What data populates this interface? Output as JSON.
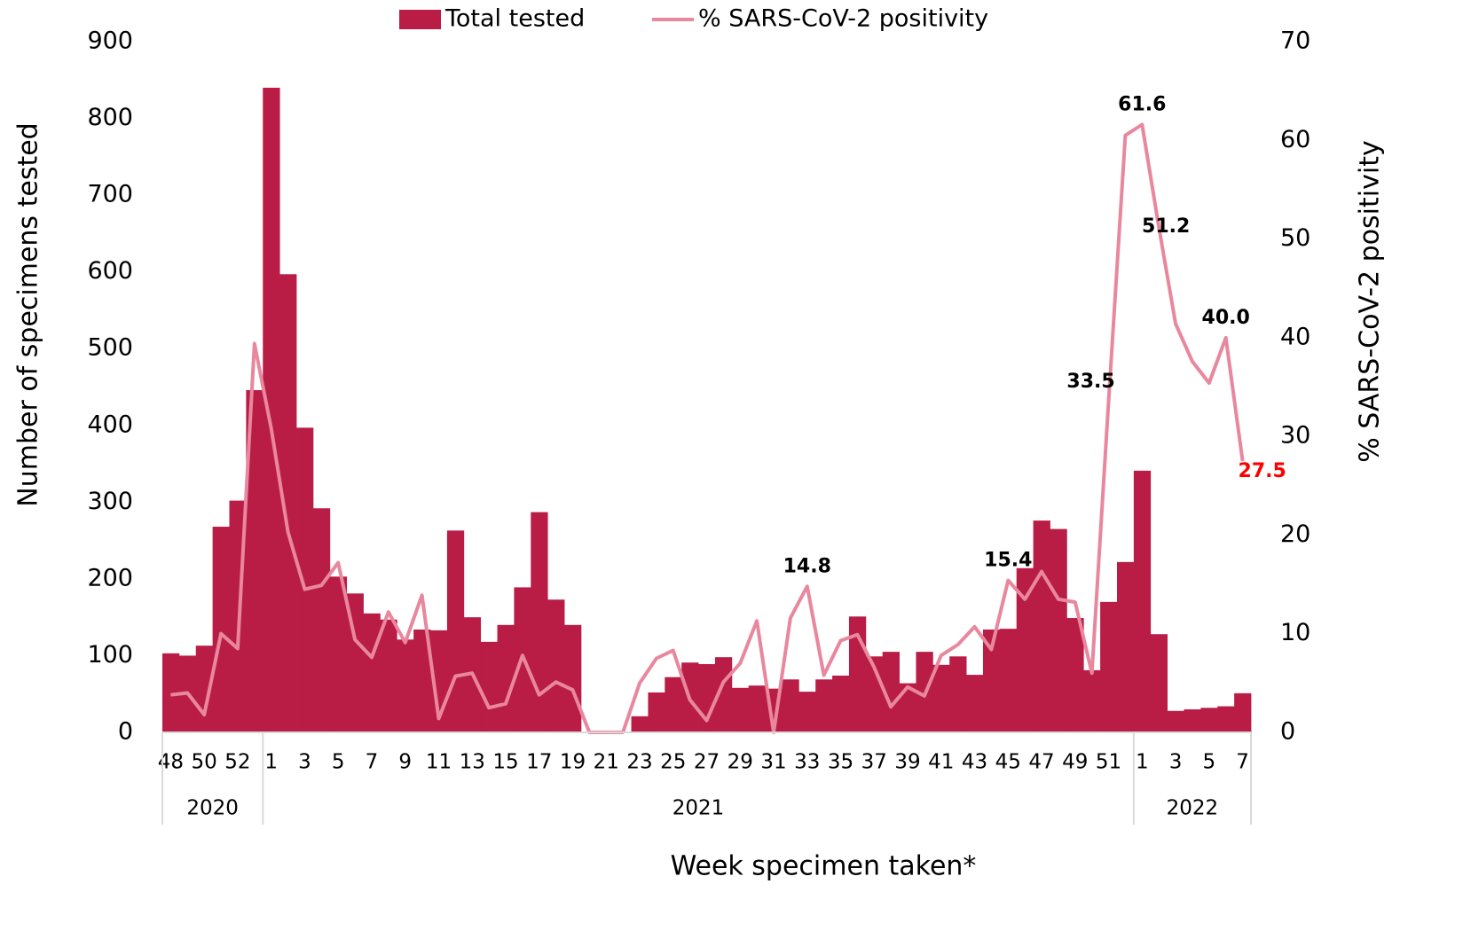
{
  "chart_data": {
    "type": "bar-line",
    "x_label": "Week specimen taken*",
    "y_label": "Number of specimens tested",
    "y2_label": "% SARS-CoV-2 positivity",
    "categories": [
      "48",
      null,
      "50",
      null,
      "52",
      null,
      "1",
      null,
      "3",
      null,
      "5",
      null,
      "7",
      null,
      "9",
      null,
      "11",
      null,
      "13",
      null,
      "15",
      null,
      "17",
      null,
      "19",
      null,
      "21",
      null,
      "23",
      null,
      "25",
      null,
      "27",
      null,
      "29",
      null,
      "31",
      null,
      "33",
      null,
      "35",
      null,
      "37",
      null,
      "39",
      null,
      "41",
      null,
      "43",
      null,
      "45",
      null,
      "47",
      null,
      "49",
      null,
      "51",
      null,
      "1",
      null,
      "3",
      null,
      "5",
      null,
      "7"
    ],
    "groups": [
      {
        "name": "2020",
        "count": 6
      },
      {
        "name": "2021",
        "count": 52
      },
      {
        "name": "2022",
        "count": 7
      }
    ],
    "series": [
      {
        "name": "Total tested",
        "type": "bar",
        "color": "#b91d45",
        "values": [
          103,
          100,
          113,
          268,
          302,
          446,
          840,
          597,
          397,
          292,
          203,
          181,
          155,
          147,
          121,
          134,
          133,
          263,
          150,
          118,
          140,
          189,
          287,
          173,
          140,
          0,
          0,
          0,
          21,
          52,
          72,
          91,
          89,
          98,
          58,
          61,
          57,
          69,
          53,
          69,
          74,
          151,
          99,
          105,
          64,
          105,
          88,
          99,
          75,
          134,
          135,
          214,
          276,
          265,
          149,
          81,
          170,
          222,
          341,
          128,
          28,
          30,
          32,
          34,
          51
        ]
      },
      {
        "name": "% SARS-CoV-2 positivity",
        "type": "line",
        "axis": "y2",
        "color": "#e8879e",
        "values": [
          3.8,
          4.0,
          1.8,
          10.0,
          8.5,
          39.4,
          30.8,
          20.3,
          14.5,
          14.9,
          17.2,
          9.4,
          7.6,
          12.2,
          9.1,
          13.9,
          1.4,
          5.7,
          6.0,
          2.5,
          2.9,
          7.8,
          3.8,
          5.1,
          4.3,
          0,
          0,
          0,
          5.0,
          7.5,
          8.3,
          3.3,
          1.2,
          5.1,
          7.0,
          11.3,
          0,
          11.6,
          14.8,
          5.8,
          9.3,
          9.9,
          6.6,
          2.6,
          4.6,
          3.7,
          7.8,
          8.9,
          10.7,
          8.4,
          15.4,
          13.5,
          16.3,
          13.5,
          13.2,
          6.0,
          33.5,
          60.5,
          61.6,
          51.2,
          41.4,
          37.6,
          35.4,
          40.0,
          27.5
        ],
        "value_labels": [
          null,
          null,
          null,
          null,
          null,
          null,
          null,
          null,
          null,
          null,
          null,
          null,
          null,
          null,
          null,
          null,
          null,
          null,
          null,
          null,
          null,
          null,
          null,
          null,
          null,
          null,
          null,
          null,
          null,
          null,
          null,
          null,
          null,
          null,
          null,
          null,
          null,
          null,
          "14.8",
          null,
          null,
          null,
          null,
          null,
          null,
          null,
          null,
          null,
          null,
          null,
          "15.4",
          null,
          null,
          null,
          null,
          null,
          "33.5",
          null,
          "61.6",
          "51.2",
          null,
          null,
          null,
          "40.0",
          "27.5"
        ],
        "last_label_color": "#ff0000"
      }
    ],
    "ylim": [
      0,
      900
    ],
    "yticks": [
      0,
      100,
      200,
      300,
      400,
      500,
      600,
      700,
      800,
      900
    ],
    "y2lim": [
      0,
      70
    ],
    "y2ticks": [
      0,
      10,
      20,
      30,
      40,
      50,
      60,
      70
    ],
    "legend": "top"
  }
}
